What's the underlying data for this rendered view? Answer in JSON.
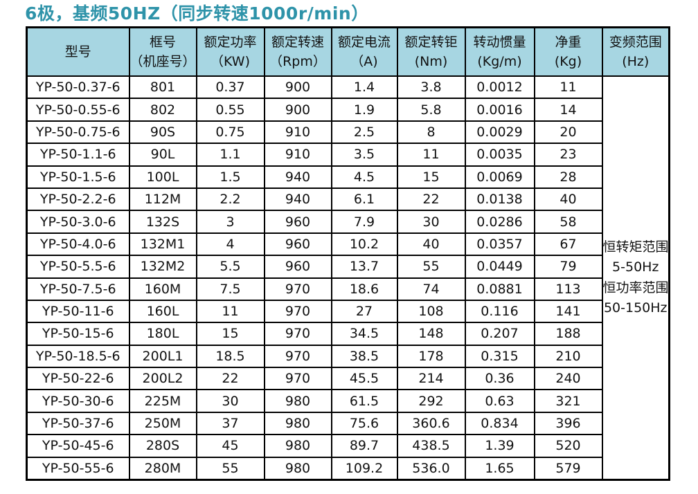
{
  "title": "6极，基频50HZ（同步转速1000r/min）",
  "colors": {
    "title_text": "#2e93a9",
    "header_bg": "#a7d6e2",
    "border": "#000000",
    "body_text": "#111111"
  },
  "table": {
    "headers": [
      {
        "line1": "型号",
        "line2": ""
      },
      {
        "line1": "框号",
        "line2": "（机座号）"
      },
      {
        "line1": "额定功率",
        "line2": "（KW)"
      },
      {
        "line1": "额定转速",
        "line2": "（Rpm）"
      },
      {
        "line1": "额定电流",
        "line2": "（A)"
      },
      {
        "line1": "额定转钜",
        "line2": "(Nm)"
      },
      {
        "line1": "转动惯量",
        "line2": "(Kg/m)"
      },
      {
        "line1": "净重",
        "line2": "(Kg)"
      },
      {
        "line1": "变频范围",
        "line2": "(Hz)"
      }
    ],
    "rows": [
      [
        "YP-50-0.37-6",
        "801",
        "0.37",
        "900",
        "1.4",
        "3.8",
        "0.0012",
        "11"
      ],
      [
        "YP-50-0.55-6",
        "802",
        "0.55",
        "900",
        "1.9",
        "5.8",
        "0.0016",
        "14"
      ],
      [
        "YP-50-0.75-6",
        "90S",
        "0.75",
        "910",
        "2.5",
        "8",
        "0.0029",
        "20"
      ],
      [
        "YP-50-1.1-6",
        "90L",
        "1.1",
        "910",
        "3.5",
        "11",
        "0.0035",
        "23"
      ],
      [
        "YP-50-1.5-6",
        "100L",
        "1.5",
        "940",
        "4.5",
        "15",
        "0.0069",
        "28"
      ],
      [
        "YP-50-2.2-6",
        "112M",
        "2.2",
        "940",
        "6.1",
        "22",
        "0.0138",
        "40"
      ],
      [
        "YP-50-3.0-6",
        "132S",
        "3",
        "960",
        "7.9",
        "30",
        "0.0286",
        "58"
      ],
      [
        "YP-50-4.0-6",
        "132M1",
        "4",
        "960",
        "10.2",
        "40",
        "0.0357",
        "67"
      ],
      [
        "YP-50-5.5-6",
        "132M2",
        "5.5",
        "960",
        "13.7",
        "55",
        "0.0449",
        "79"
      ],
      [
        "YP-50-7.5-6",
        "160M",
        "7.5",
        "970",
        "18.6",
        "74",
        "0.0881",
        "113"
      ],
      [
        "YP-50-11-6",
        "160L",
        "11",
        "970",
        "27",
        "108",
        "0.116",
        "141"
      ],
      [
        "YP-50-15-6",
        "180L",
        "15",
        "970",
        "34.5",
        "148",
        "0.207",
        "188"
      ],
      [
        "YP-50-18.5-6",
        "200L1",
        "18.5",
        "970",
        "38.5",
        "178",
        "0.315",
        "210"
      ],
      [
        "YP-50-22-6",
        "200L2",
        "22",
        "970",
        "45.5",
        "214",
        "0.36",
        "240"
      ],
      [
        "YP-50-30-6",
        "225M",
        "30",
        "980",
        "61.5",
        "292",
        "0.63",
        "321"
      ],
      [
        "YP-50-37-6",
        "250M",
        "37",
        "980",
        "75.6",
        "360.6",
        "0.834",
        "396"
      ],
      [
        "YP-50-45-6",
        "280S",
        "45",
        "980",
        "89.7",
        "438.5",
        "1.39",
        "520"
      ],
      [
        "YP-50-55-6",
        "280M",
        "55",
        "980",
        "109.2",
        "536.0",
        "1.65",
        "579"
      ]
    ],
    "freq_range": [
      "恒转矩范围",
      "5-50Hz",
      "恒功率范围",
      "50-150Hz"
    ]
  }
}
